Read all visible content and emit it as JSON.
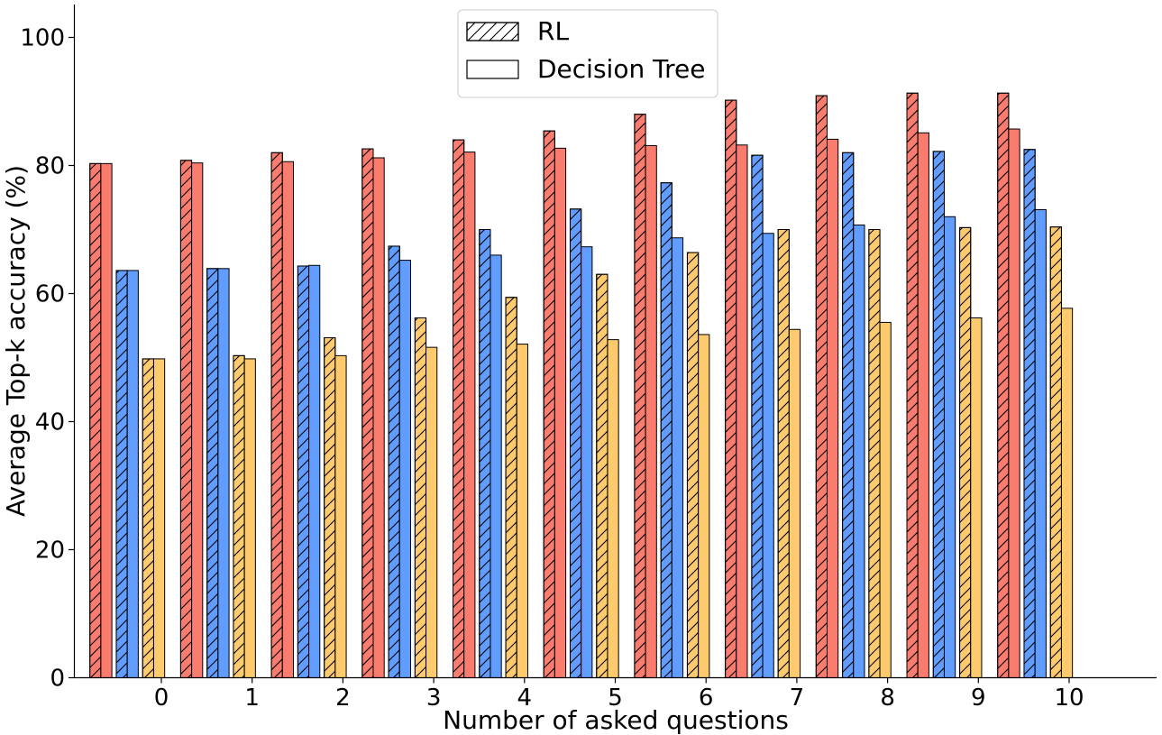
{
  "chart_data": {
    "type": "bar",
    "title": "",
    "xlabel": "Number of asked questions",
    "ylabel": "Average Top-k accuracy (%)",
    "ylim": [
      0,
      105
    ],
    "yticks": [
      0,
      20,
      40,
      60,
      80,
      100
    ],
    "categories": [
      "0",
      "1",
      "2",
      "3",
      "4",
      "5",
      "6",
      "7",
      "8",
      "9",
      "10"
    ],
    "legend": {
      "position": "top-center",
      "entries": [
        {
          "label": "RL",
          "pattern": "hatched"
        },
        {
          "label": "Decision Tree",
          "pattern": "solid"
        }
      ]
    },
    "series": [
      {
        "name": "RL (red)",
        "method": "RL",
        "color": "#fa7c6f",
        "hatched": true,
        "values": [
          80.3,
          80.8,
          82.0,
          82.6,
          84.0,
          85.4,
          88.0,
          90.2,
          90.9,
          91.3,
          91.3
        ]
      },
      {
        "name": "Decision Tree (red)",
        "method": "Decision Tree",
        "color": "#fa7c6f",
        "hatched": false,
        "values": [
          80.3,
          80.4,
          80.6,
          81.2,
          82.1,
          82.7,
          83.1,
          83.2,
          84.1,
          85.1,
          85.7
        ]
      },
      {
        "name": "RL (blue)",
        "method": "RL",
        "color": "#619cff",
        "hatched": true,
        "values": [
          63.6,
          63.9,
          64.3,
          67.4,
          70.0,
          73.2,
          77.3,
          81.6,
          82.0,
          82.2,
          82.5
        ]
      },
      {
        "name": "Decision Tree (blue)",
        "method": "Decision Tree",
        "color": "#619cff",
        "hatched": false,
        "values": [
          63.6,
          63.9,
          64.4,
          65.2,
          66.0,
          67.3,
          68.7,
          69.4,
          70.7,
          72.0,
          73.1
        ]
      },
      {
        "name": "RL (yellow)",
        "method": "RL",
        "color": "#fdcb6e",
        "hatched": true,
        "values": [
          49.8,
          50.3,
          53.1,
          56.2,
          59.4,
          63.0,
          66.4,
          70.0,
          70.0,
          70.3,
          70.4
        ]
      },
      {
        "name": "Decision Tree (yellow)",
        "method": "Decision Tree",
        "color": "#fdcb6e",
        "hatched": false,
        "values": [
          49.8,
          49.8,
          50.3,
          51.6,
          52.1,
          52.8,
          53.6,
          54.4,
          55.5,
          56.2,
          57.7
        ]
      }
    ]
  }
}
